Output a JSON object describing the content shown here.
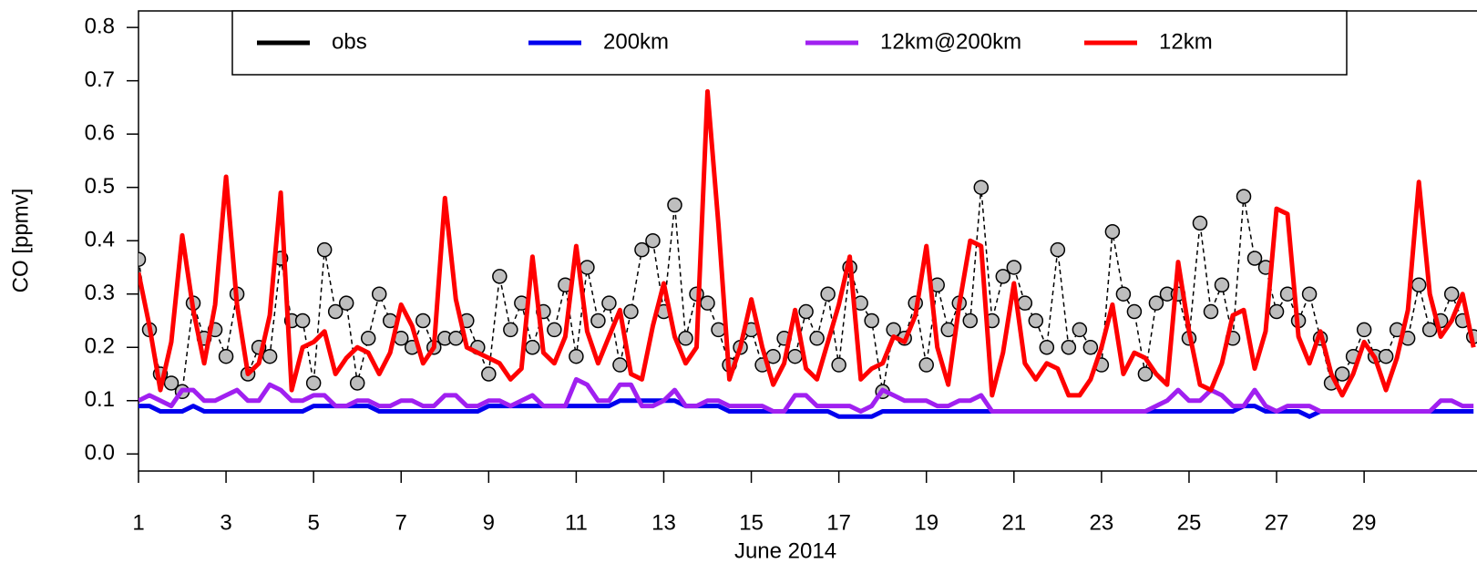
{
  "chart_data": {
    "type": "line",
    "xlabel": "June 2014",
    "ylabel": "CO [ppmv]",
    "x": [
      1,
      1.25,
      1.5,
      1.75,
      2,
      2.25,
      2.5,
      2.75,
      3,
      3.25,
      3.5,
      3.75,
      4,
      4.25,
      4.5,
      4.75,
      5,
      5.25,
      5.5,
      5.75,
      6,
      6.25,
      6.5,
      6.75,
      7,
      7.25,
      7.5,
      7.75,
      8,
      8.25,
      8.5,
      8.75,
      9,
      9.25,
      9.5,
      9.75,
      10,
      10.25,
      10.5,
      10.75,
      11,
      11.25,
      11.5,
      11.75,
      12,
      12.25,
      12.5,
      12.75,
      13,
      13.25,
      13.5,
      13.75,
      14,
      14.25,
      14.5,
      14.75,
      15,
      15.25,
      15.5,
      15.75,
      16,
      16.25,
      16.5,
      16.75,
      17,
      17.25,
      17.5,
      17.75,
      18,
      18.25,
      18.5,
      18.75,
      19,
      19.25,
      19.5,
      19.75,
      20,
      20.25,
      20.5,
      20.75,
      21,
      21.25,
      21.5,
      21.75,
      22,
      22.25,
      22.5,
      22.75,
      23,
      23.25,
      23.5,
      23.75,
      24,
      24.25,
      24.5,
      24.75,
      25,
      25.25,
      25.5,
      25.75,
      26,
      26.25,
      26.5,
      26.75,
      27,
      27.25,
      27.5,
      27.75,
      28,
      28.25,
      28.5,
      28.75,
      29,
      29.25,
      29.5,
      29.75,
      30,
      30.25,
      30.5,
      30.75,
      31,
      31.25,
      31.5
    ],
    "series": [
      {
        "name": "obs",
        "color": "#000000",
        "marker_fill": "#bebebe",
        "values": [
          0.365,
          0.233,
          0.15,
          0.133,
          0.117,
          0.283,
          0.217,
          0.233,
          0.183,
          0.3,
          0.15,
          0.2,
          0.183,
          0.367,
          0.25,
          0.25,
          0.133,
          0.383,
          0.267,
          0.283,
          0.133,
          0.217,
          0.3,
          0.25,
          0.217,
          0.2,
          0.25,
          0.2,
          0.217,
          0.217,
          0.25,
          0.2,
          0.15,
          0.333,
          0.233,
          0.283,
          0.2,
          0.267,
          0.233,
          0.317,
          0.183,
          0.35,
          0.25,
          0.283,
          0.167,
          0.267,
          0.383,
          0.4,
          0.267,
          0.467,
          0.217,
          0.3,
          0.283,
          0.233,
          0.167,
          0.2,
          0.233,
          0.167,
          0.183,
          0.217,
          0.183,
          0.267,
          0.217,
          0.3,
          0.167,
          0.35,
          0.283,
          0.25,
          0.117,
          0.233,
          0.217,
          0.283,
          0.167,
          0.317,
          0.233,
          0.283,
          0.25,
          0.5,
          0.25,
          0.333,
          0.35,
          0.283,
          0.25,
          0.2,
          0.383,
          0.2,
          0.233,
          0.2,
          0.167,
          0.417,
          0.3,
          0.267,
          0.15,
          0.283,
          0.3,
          0.3,
          0.217,
          0.433,
          0.267,
          0.317,
          0.217,
          0.483,
          0.367,
          0.35,
          0.267,
          0.3,
          0.25,
          0.3,
          0.217,
          0.133,
          0.15,
          0.183,
          0.233,
          0.183,
          0.183,
          0.233,
          0.217,
          0.317,
          0.233,
          0.25,
          0.3,
          0.25,
          0.22
        ]
      },
      {
        "name": "200km",
        "color": "#0000ee",
        "values": [
          0.09,
          0.09,
          0.08,
          0.08,
          0.08,
          0.09,
          0.08,
          0.08,
          0.08,
          0.08,
          0.08,
          0.08,
          0.08,
          0.08,
          0.08,
          0.08,
          0.09,
          0.09,
          0.09,
          0.09,
          0.09,
          0.09,
          0.08,
          0.08,
          0.08,
          0.08,
          0.08,
          0.08,
          0.08,
          0.08,
          0.08,
          0.08,
          0.09,
          0.09,
          0.09,
          0.09,
          0.09,
          0.09,
          0.09,
          0.09,
          0.09,
          0.09,
          0.09,
          0.09,
          0.1,
          0.1,
          0.1,
          0.1,
          0.1,
          0.1,
          0.09,
          0.09,
          0.09,
          0.09,
          0.08,
          0.08,
          0.08,
          0.08,
          0.08,
          0.08,
          0.08,
          0.08,
          0.08,
          0.08,
          0.07,
          0.07,
          0.07,
          0.07,
          0.08,
          0.08,
          0.08,
          0.08,
          0.08,
          0.08,
          0.08,
          0.08,
          0.08,
          0.08,
          0.08,
          0.08,
          0.08,
          0.08,
          0.08,
          0.08,
          0.08,
          0.08,
          0.08,
          0.08,
          0.08,
          0.08,
          0.08,
          0.08,
          0.08,
          0.08,
          0.08,
          0.08,
          0.08,
          0.08,
          0.08,
          0.08,
          0.08,
          0.09,
          0.09,
          0.08,
          0.08,
          0.08,
          0.08,
          0.07,
          0.08,
          0.08,
          0.08,
          0.08,
          0.08,
          0.08,
          0.08,
          0.08,
          0.08,
          0.08,
          0.08,
          0.08,
          0.08,
          0.08,
          0.08
        ]
      },
      {
        "name": "12km@200km",
        "color": "#a020f0",
        "values": [
          0.1,
          0.11,
          0.1,
          0.09,
          0.12,
          0.12,
          0.1,
          0.1,
          0.11,
          0.12,
          0.1,
          0.1,
          0.13,
          0.12,
          0.1,
          0.1,
          0.11,
          0.11,
          0.09,
          0.09,
          0.1,
          0.1,
          0.09,
          0.09,
          0.1,
          0.1,
          0.09,
          0.09,
          0.11,
          0.11,
          0.09,
          0.09,
          0.1,
          0.1,
          0.09,
          0.1,
          0.11,
          0.09,
          0.09,
          0.09,
          0.14,
          0.13,
          0.1,
          0.1,
          0.13,
          0.13,
          0.09,
          0.09,
          0.1,
          0.12,
          0.09,
          0.09,
          0.1,
          0.1,
          0.09,
          0.09,
          0.09,
          0.09,
          0.08,
          0.08,
          0.11,
          0.11,
          0.09,
          0.09,
          0.09,
          0.09,
          0.08,
          0.09,
          0.12,
          0.11,
          0.1,
          0.1,
          0.1,
          0.09,
          0.09,
          0.1,
          0.1,
          0.11,
          0.08,
          0.08,
          0.08,
          0.08,
          0.08,
          0.08,
          0.08,
          0.08,
          0.08,
          0.08,
          0.08,
          0.08,
          0.08,
          0.08,
          0.08,
          0.09,
          0.1,
          0.12,
          0.1,
          0.1,
          0.12,
          0.11,
          0.09,
          0.09,
          0.12,
          0.09,
          0.08,
          0.09,
          0.09,
          0.09,
          0.08,
          0.08,
          0.08,
          0.08,
          0.08,
          0.08,
          0.08,
          0.08,
          0.08,
          0.08,
          0.08,
          0.1,
          0.1,
          0.09,
          0.09
        ]
      },
      {
        "name": "12km",
        "color": "#ff0000",
        "values": [
          0.34,
          0.24,
          0.12,
          0.21,
          0.41,
          0.27,
          0.17,
          0.28,
          0.52,
          0.28,
          0.15,
          0.17,
          0.26,
          0.49,
          0.12,
          0.2,
          0.21,
          0.23,
          0.15,
          0.18,
          0.2,
          0.19,
          0.15,
          0.19,
          0.28,
          0.24,
          0.17,
          0.2,
          0.48,
          0.29,
          0.2,
          0.19,
          0.18,
          0.17,
          0.14,
          0.16,
          0.37,
          0.19,
          0.17,
          0.22,
          0.39,
          0.23,
          0.17,
          0.22,
          0.27,
          0.15,
          0.14,
          0.24,
          0.32,
          0.22,
          0.17,
          0.2,
          0.68,
          0.43,
          0.14,
          0.2,
          0.29,
          0.2,
          0.13,
          0.17,
          0.27,
          0.16,
          0.14,
          0.21,
          0.28,
          0.37,
          0.14,
          0.16,
          0.17,
          0.22,
          0.21,
          0.26,
          0.39,
          0.2,
          0.13,
          0.28,
          0.4,
          0.39,
          0.11,
          0.19,
          0.32,
          0.17,
          0.14,
          0.17,
          0.16,
          0.11,
          0.11,
          0.14,
          0.2,
          0.28,
          0.15,
          0.19,
          0.18,
          0.15,
          0.13,
          0.36,
          0.23,
          0.13,
          0.12,
          0.17,
          0.26,
          0.27,
          0.16,
          0.23,
          0.46,
          0.45,
          0.22,
          0.17,
          0.23,
          0.15,
          0.11,
          0.15,
          0.21,
          0.18,
          0.12,
          0.18,
          0.27,
          0.51,
          0.3,
          0.22,
          0.25,
          0.3,
          0.2
        ]
      }
    ],
    "xlim": [
      1,
      31.6
    ],
    "ylim": [
      -0.032,
      0.831
    ],
    "xticks": [
      1,
      3,
      5,
      7,
      9,
      11,
      13,
      15,
      17,
      19,
      21,
      23,
      25,
      27,
      29
    ],
    "yticks": [
      {
        "value": 0,
        "label": "0.0"
      },
      0.1,
      0.2,
      0.3,
      0.4,
      0.5,
      0.6,
      0.7,
      0.8
    ],
    "legend": "top"
  }
}
